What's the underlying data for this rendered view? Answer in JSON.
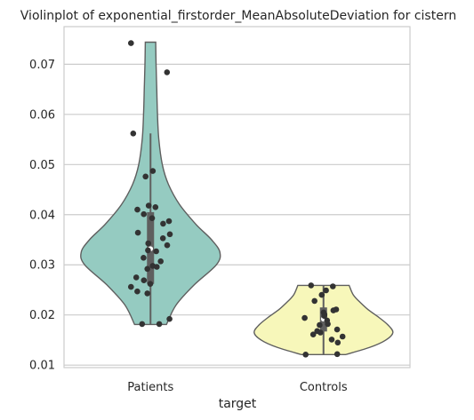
{
  "chart_data": {
    "type": "violin",
    "title": "Violinplot of exponential_firstorder_MeanAbsoluteDeviation for cistern",
    "xlabel": "target",
    "ylabel": "",
    "ylim": [
      0.0095,
      0.0775
    ],
    "yticks": [
      0.01,
      0.02,
      0.03,
      0.04,
      0.05,
      0.06,
      0.07
    ],
    "ytick_labels": [
      "0.01",
      "0.02",
      "0.03",
      "0.04",
      "0.05",
      "0.06",
      "0.07"
    ],
    "grid": true,
    "categories": [
      "Patients",
      "Controls"
    ],
    "colors": {
      "Patients": "#95cbc1",
      "Controls": "#f7f7ba",
      "points": "#333333",
      "outline": "#5f5f5f",
      "grid": "#cccccc"
    },
    "series": [
      {
        "category": "Patients",
        "points": [
          0.0742,
          0.0684,
          0.0562,
          0.0487,
          0.0476,
          0.0418,
          0.0415,
          0.041,
          0.0401,
          0.0393,
          0.0387,
          0.0382,
          0.0364,
          0.0361,
          0.0353,
          0.0343,
          0.0339,
          0.0329,
          0.0327,
          0.0314,
          0.0307,
          0.0298,
          0.0296,
          0.0292,
          0.0275,
          0.0269,
          0.0262,
          0.0256,
          0.0247,
          0.0243,
          0.0192,
          0.0182,
          0.0182
        ],
        "min": 0.0181,
        "q1": 0.0262,
        "median": 0.0332,
        "q3": 0.0405,
        "whisker_high": 0.0562,
        "max": 0.0744,
        "density": [
          [
            0.0181,
            0.23
          ],
          [
            0.022,
            0.37
          ],
          [
            0.026,
            0.63
          ],
          [
            0.03,
            0.95
          ],
          [
            0.0325,
            1.0
          ],
          [
            0.035,
            0.88
          ],
          [
            0.038,
            0.66
          ],
          [
            0.042,
            0.42
          ],
          [
            0.046,
            0.26
          ],
          [
            0.05,
            0.17
          ],
          [
            0.055,
            0.12
          ],
          [
            0.06,
            0.1
          ],
          [
            0.065,
            0.09
          ],
          [
            0.07,
            0.08
          ],
          [
            0.0744,
            0.075
          ]
        ]
      },
      {
        "category": "Controls",
        "points": [
          0.0259,
          0.0257,
          0.0249,
          0.024,
          0.0228,
          0.0211,
          0.0209,
          0.0205,
          0.0201,
          0.0198,
          0.0194,
          0.0189,
          0.0182,
          0.018,
          0.0171,
          0.0168,
          0.0165,
          0.0161,
          0.0157,
          0.0151,
          0.0145,
          0.0122,
          0.0121
        ],
        "min": 0.0121,
        "q1": 0.0167,
        "median": 0.0192,
        "q3": 0.0215,
        "whisker_high": 0.0259,
        "max": 0.0259,
        "density": [
          [
            0.0121,
            0.32
          ],
          [
            0.0135,
            0.66
          ],
          [
            0.015,
            0.9
          ],
          [
            0.0165,
            1.0
          ],
          [
            0.018,
            0.93
          ],
          [
            0.0195,
            0.8
          ],
          [
            0.021,
            0.65
          ],
          [
            0.0225,
            0.53
          ],
          [
            0.024,
            0.43
          ],
          [
            0.0259,
            0.37
          ]
        ]
      }
    ]
  }
}
